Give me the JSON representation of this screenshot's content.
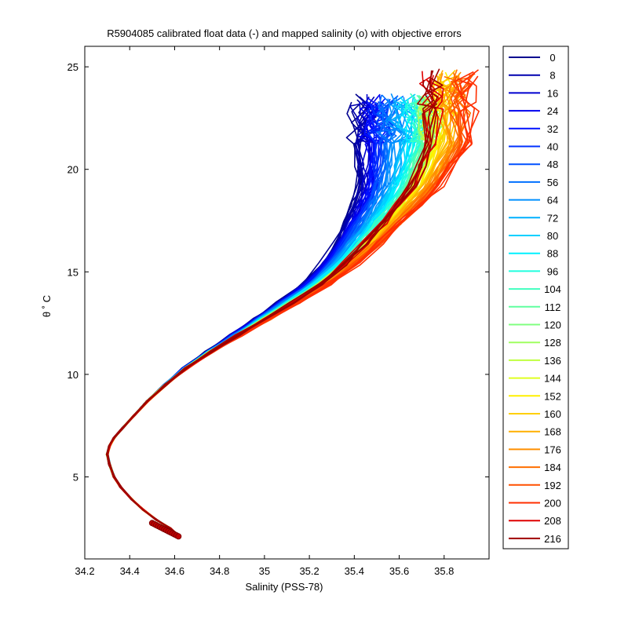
{
  "chart_data": {
    "type": "line",
    "title": "R5904085 calibrated float data (-) and mapped salinity (o) with objective errors",
    "xlabel": "Salinity (PSS-78)",
    "ylabel": "θ ˚ C",
    "xlim": [
      34.2,
      36.0
    ],
    "ylim": [
      1.0,
      26.0
    ],
    "xticks": [
      "34.2",
      "34.4",
      "34.6",
      "34.8",
      "35",
      "35.2",
      "35.4",
      "35.6",
      "35.8"
    ],
    "yticks": [
      "5",
      "10",
      "15",
      "20",
      "25"
    ],
    "grid": false,
    "legend": {
      "placement": "outside-right",
      "entries": [
        "0",
        "8",
        "16",
        "24",
        "32",
        "40",
        "48",
        "56",
        "64",
        "72",
        "80",
        "88",
        "96",
        "104",
        "112",
        "120",
        "128",
        "136",
        "144",
        "152",
        "160",
        "168",
        "176",
        "184",
        "192",
        "200",
        "208",
        "216"
      ],
      "colors": [
        "#00008f",
        "#0000af",
        "#0000cf",
        "#0000ef",
        "#0010ff",
        "#0030ff",
        "#0050ff",
        "#0070ff",
        "#0090ff",
        "#00b0ff",
        "#00d0ff",
        "#00f0ff",
        "#20ffdf",
        "#40ffbf",
        "#60ff9f",
        "#80ff80",
        "#9fff60",
        "#bfff40",
        "#dfff20",
        "#ffef00",
        "#ffcf00",
        "#ffaf00",
        "#ff8f00",
        "#ff6f00",
        "#ff5000",
        "#ff2f00",
        "#df0000",
        "#9f0000"
      ]
    },
    "colormap": "jet",
    "base_profile": {
      "salinity": [
        34.62,
        34.58,
        34.52,
        34.46,
        34.41,
        34.36,
        34.33,
        34.31,
        34.3,
        34.31,
        34.33,
        34.37,
        34.42,
        34.48,
        34.56,
        34.65,
        34.76,
        34.88,
        35.0,
        35.12,
        35.25,
        35.36,
        35.45,
        35.53,
        35.6,
        35.66,
        35.7,
        35.74
      ],
      "theta": [
        2.1,
        2.5,
        2.9,
        3.4,
        3.9,
        4.5,
        5.0,
        5.6,
        6.1,
        6.5,
        6.9,
        7.4,
        8.0,
        8.7,
        9.5,
        10.3,
        11.1,
        11.9,
        12.7,
        13.5,
        14.4,
        15.4,
        16.4,
        17.4,
        18.3,
        19.2,
        20.2,
        21.3
      ]
    },
    "series_offsets": {
      "note_free": true,
      "per_series_salinity_shift_at_top": [
        -0.32,
        -0.3,
        -0.28,
        -0.26,
        -0.24,
        -0.22,
        -0.2,
        -0.18,
        -0.15,
        -0.12,
        -0.1,
        -0.08,
        -0.06,
        -0.04,
        -0.02,
        0.0,
        0.0,
        0.0,
        0.02,
        0.04,
        0.06,
        0.08,
        0.1,
        0.12,
        0.14,
        0.16,
        0.0,
        0.0
      ]
    }
  }
}
